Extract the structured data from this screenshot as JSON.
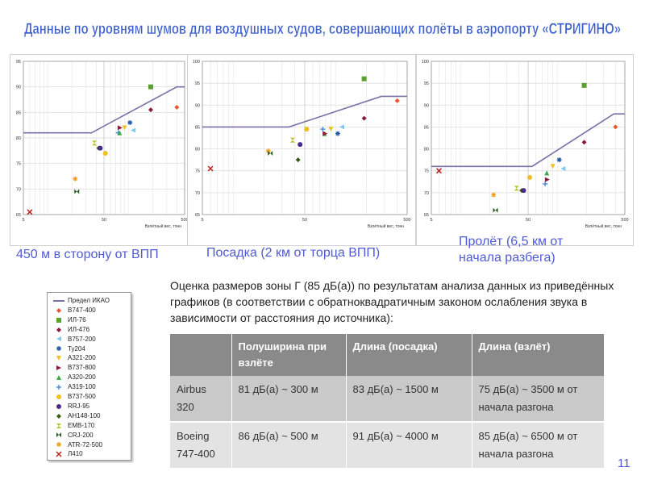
{
  "slide": {
    "title": "Данные по уровням шумов для воздушных судов, совершающих полёты в аэропорту «СТРИГИНО»",
    "page_number": "11",
    "title_color": "#3c5fcf"
  },
  "captions": {
    "left": "450 м в сторону от ВПП",
    "middle": "Посадка (2 км от торца ВПП)",
    "right": "Пролёт (6,5 км от начала разбега)"
  },
  "legend": [
    {
      "label": "Предел ИКАО",
      "icon": "line",
      "color": "#7b6fa8"
    },
    {
      "label": "B747-400",
      "icon": "diamond",
      "color": "#e8552f"
    },
    {
      "label": "ИЛ-76",
      "icon": "square",
      "color": "#5aa02c"
    },
    {
      "label": "ИЛ-476",
      "icon": "diamond",
      "color": "#8b1a3a"
    },
    {
      "label": "B757-200",
      "icon": "triangle-left",
      "color": "#7ec8f0"
    },
    {
      "label": "Ту204",
      "icon": "asterisk",
      "color": "#1d5aa8"
    },
    {
      "label": "A321-200",
      "icon": "triangle-down",
      "color": "#f0c020"
    },
    {
      "label": "B737-800",
      "icon": "triangle-right",
      "color": "#8b1a3a"
    },
    {
      "label": "A320-200",
      "icon": "triangle-up",
      "color": "#3aa84a"
    },
    {
      "label": "A319-100",
      "icon": "plus",
      "color": "#5090e0"
    },
    {
      "label": "B737-500",
      "icon": "circle",
      "color": "#f0c020"
    },
    {
      "label": "RRJ-95",
      "icon": "circle",
      "color": "#4a2a8a"
    },
    {
      "label": "АН148-100",
      "icon": "diamond",
      "color": "#3a5a1a"
    },
    {
      "label": "EMB-170",
      "icon": "hourglass",
      "color": "#b8c030"
    },
    {
      "label": "CRJ-200",
      "icon": "bowtie",
      "color": "#2a5a2a"
    },
    {
      "label": "ATR-72-500",
      "icon": "asterisk",
      "color": "#f0a020"
    },
    {
      "label": "Л410",
      "icon": "x",
      "color": "#c02020"
    }
  ],
  "estimate_text": "Оценка размеров зоны Г (85 дБ(а)) по результатам анализа данных из приведённых графиков (в соответствии с обратноквадратичным законом ослабления звука в зависимости от расстояния до источника):",
  "table": {
    "headers": [
      "",
      "Полуширина при взлёте",
      "Длина (посадка)",
      "Длина (взлёт)"
    ],
    "rows": [
      [
        "Airbus 320",
        "81 дБ(а) ~ 300 м",
        "83 дБ(а) ~ 1500 м",
        "75 дБ(а) ~ 3500 м от начала разгона"
      ],
      [
        "Boeing 747-400",
        "86 дБ(а) ~ 500 м",
        "91 дБ(а) ~ 4000 м",
        "85 дБ(а) ~ 6500 м от начала разгона"
      ]
    ]
  },
  "chart_data": [
    {
      "type": "scatter",
      "title": "",
      "xlabel": "Взлётный вес, тонн",
      "ylabel": "",
      "x_scale": "log",
      "xlim": [
        5,
        500
      ],
      "ylim": [
        65,
        95
      ],
      "x_ticks": [
        "5",
        "50",
        "500"
      ],
      "y_ticks": [
        "65",
        "70",
        "75",
        "80",
        "85",
        "90",
        "95"
      ],
      "grid": true,
      "limit_line": {
        "name": "Предел ИКАО",
        "x": [
          5,
          35,
          400,
          500
        ],
        "y": [
          81,
          81,
          90,
          90
        ]
      },
      "points": [
        {
          "series": "Л410",
          "x": 6,
          "y": 65.5
        },
        {
          "series": "ATR-72-500",
          "x": 22,
          "y": 72
        },
        {
          "series": "CRJ-200",
          "x": 23,
          "y": 69.5
        },
        {
          "series": "EMB-170",
          "x": 38,
          "y": 79
        },
        {
          "series": "АН148-100",
          "x": 43,
          "y": 78
        },
        {
          "series": "RRJ-95",
          "x": 45,
          "y": 78
        },
        {
          "series": "B737-500",
          "x": 52,
          "y": 77
        },
        {
          "series": "A319-100",
          "x": 75,
          "y": 81
        },
        {
          "series": "A320-200",
          "x": 78,
          "y": 81
        },
        {
          "series": "B737-800",
          "x": 79,
          "y": 82
        },
        {
          "series": "A321-200",
          "x": 90,
          "y": 82
        },
        {
          "series": "Ту204",
          "x": 105,
          "y": 83
        },
        {
          "series": "B757-200",
          "x": 115,
          "y": 81.5
        },
        {
          "series": "ИЛ-476",
          "x": 190,
          "y": 85.5
        },
        {
          "series": "ИЛ-76",
          "x": 190,
          "y": 90
        },
        {
          "series": "B747-400",
          "x": 400,
          "y": 86
        }
      ]
    },
    {
      "type": "scatter",
      "title": "",
      "xlabel": "Взлётный вес, тонн",
      "ylabel": "",
      "x_scale": "log",
      "xlim": [
        5,
        500
      ],
      "ylim": [
        65,
        100
      ],
      "x_ticks": [
        "5",
        "50",
        "500"
      ],
      "y_ticks": [
        "65",
        "70",
        "75",
        "80",
        "85",
        "90",
        "95",
        "100"
      ],
      "grid": true,
      "limit_line": {
        "name": "Предел ИКАО",
        "x": [
          5,
          35,
          280,
          500
        ],
        "y": [
          85,
          85,
          92,
          92
        ]
      },
      "points": [
        {
          "series": "Л410",
          "x": 6,
          "y": 75.5
        },
        {
          "series": "ATR-72-500",
          "x": 22,
          "y": 79.5
        },
        {
          "series": "CRJ-200",
          "x": 23,
          "y": 79
        },
        {
          "series": "EMB-170",
          "x": 38,
          "y": 82
        },
        {
          "series": "АН148-100",
          "x": 43,
          "y": 77.5
        },
        {
          "series": "RRJ-95",
          "x": 45,
          "y": 81
        },
        {
          "series": "B737-500",
          "x": 52,
          "y": 84.5
        },
        {
          "series": "A319-100",
          "x": 75,
          "y": 84.5
        },
        {
          "series": "A320-200",
          "x": 78,
          "y": 83.5
        },
        {
          "series": "B737-800",
          "x": 79,
          "y": 83.5
        },
        {
          "series": "A321-200",
          "x": 90,
          "y": 84.5
        },
        {
          "series": "Ту204",
          "x": 105,
          "y": 83.5
        },
        {
          "series": "B757-200",
          "x": 115,
          "y": 85
        },
        {
          "series": "ИЛ-476",
          "x": 190,
          "y": 87
        },
        {
          "series": "ИЛ-76",
          "x": 190,
          "y": 96
        },
        {
          "series": "B747-400",
          "x": 400,
          "y": 91
        }
      ]
    },
    {
      "type": "scatter",
      "title": "",
      "xlabel": "Взлётный вес, тонн",
      "ylabel": "",
      "x_scale": "log",
      "xlim": [
        5,
        500
      ],
      "ylim": [
        65,
        100
      ],
      "x_ticks": [
        "5",
        "50",
        "500"
      ],
      "y_ticks": [
        "65",
        "70",
        "75",
        "80",
        "85",
        "90",
        "95",
        "100"
      ],
      "grid": true,
      "limit_line": {
        "name": "Предел ИКАО",
        "x": [
          5,
          55,
          385,
          500
        ],
        "y": [
          76,
          76,
          88,
          88
        ]
      },
      "points": [
        {
          "series": "Л410",
          "x": 6,
          "y": 75
        },
        {
          "series": "ATR-72-500",
          "x": 22,
          "y": 69.5
        },
        {
          "series": "CRJ-200",
          "x": 23,
          "y": 66
        },
        {
          "series": "EMB-170",
          "x": 38,
          "y": 71
        },
        {
          "series": "АН148-100",
          "x": 43,
          "y": 70.5
        },
        {
          "series": "RRJ-95",
          "x": 45,
          "y": 70.5
        },
        {
          "series": "B737-500",
          "x": 52,
          "y": 73.5
        },
        {
          "series": "A319-100",
          "x": 75,
          "y": 72
        },
        {
          "series": "A320-200",
          "x": 78,
          "y": 74.5
        },
        {
          "series": "B737-800",
          "x": 79,
          "y": 73
        },
        {
          "series": "A321-200",
          "x": 90,
          "y": 76
        },
        {
          "series": "Ту204",
          "x": 105,
          "y": 77.5
        },
        {
          "series": "B757-200",
          "x": 115,
          "y": 75.5
        },
        {
          "series": "ИЛ-476",
          "x": 190,
          "y": 81.5
        },
        {
          "series": "ИЛ-76",
          "x": 190,
          "y": 94.5
        },
        {
          "series": "B747-400",
          "x": 400,
          "y": 85
        }
      ]
    }
  ]
}
